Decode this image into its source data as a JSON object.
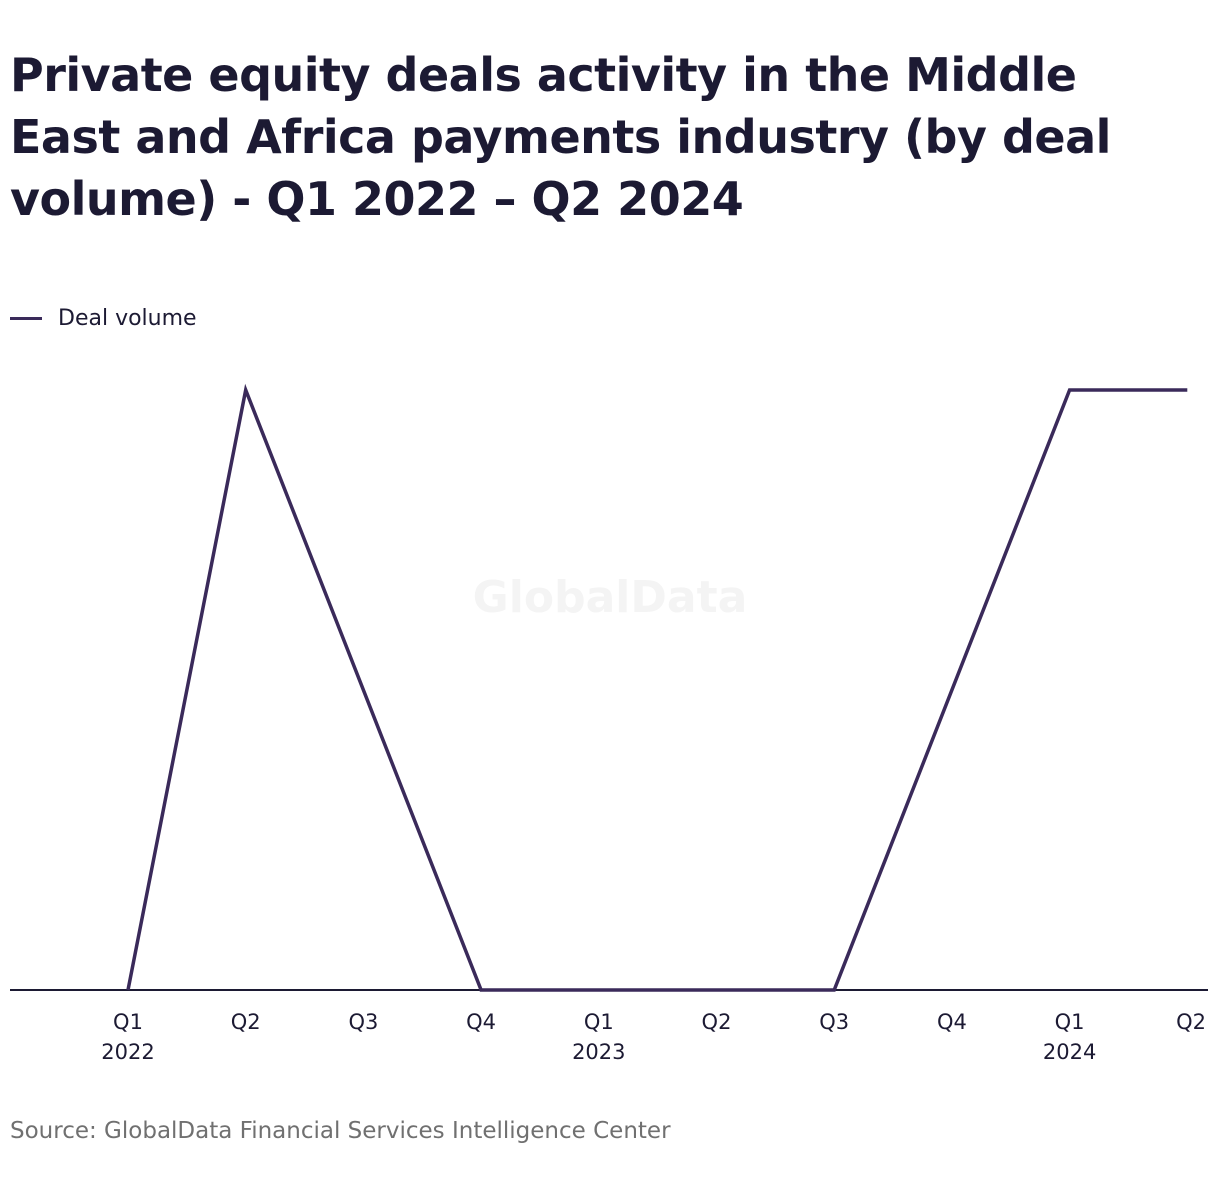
{
  "chart_data": {
    "type": "line",
    "title": "Private equity deals activity in the Middle East and Africa payments industry (by deal volume) - Q1 2022 – Q2 2024",
    "categories": [
      "Q1 2022",
      "Q2 2022",
      "Q3 2022",
      "Q4 2022",
      "Q1 2023",
      "Q2 2023",
      "Q3 2023",
      "Q4 2023",
      "Q1 2024",
      "Q2 2024"
    ],
    "x_tick_labels": [
      {
        "quarter": "Q1",
        "year": "2022"
      },
      {
        "quarter": "Q2",
        "year": ""
      },
      {
        "quarter": "Q3",
        "year": ""
      },
      {
        "quarter": "Q4",
        "year": ""
      },
      {
        "quarter": "Q1",
        "year": "2023"
      },
      {
        "quarter": "Q2",
        "year": ""
      },
      {
        "quarter": "Q3",
        "year": ""
      },
      {
        "quarter": "Q4",
        "year": ""
      },
      {
        "quarter": "Q1",
        "year": "2024"
      },
      {
        "quarter": "Q2",
        "year": ""
      }
    ],
    "series": [
      {
        "name": "Deal volume",
        "color": "#3a2a5a",
        "values": [
          0,
          1,
          null,
          0,
          null,
          null,
          0,
          null,
          1,
          1
        ]
      }
    ],
    "ylim": [
      0,
      1
    ],
    "grid": false,
    "legend_position": "top-left"
  },
  "watermark": "GlobalData",
  "source": "Source: GlobalData Financial Services Intelligence Center"
}
